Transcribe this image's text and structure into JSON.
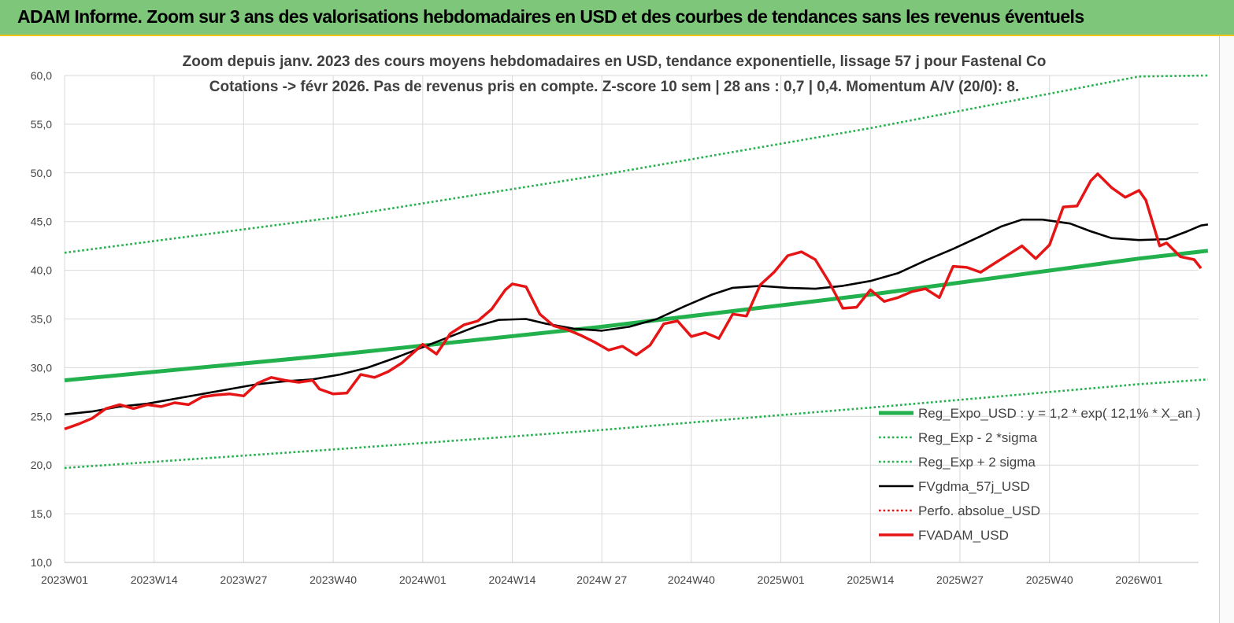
{
  "header": {
    "title": "ADAM Informe. Zoom sur 3 ans des valorisations hebdomadaires en USD et des courbes de tendances sans les revenus éventuels"
  },
  "colors": {
    "header_bg": "#7dc67a",
    "accent_rule": "#f0c419",
    "trend": "#22b14c",
    "sigma": "#22b14c",
    "ma": "#000000",
    "price": "#e61515",
    "perf": "#e61515",
    "grid": "#d9d9d9"
  },
  "chart_data": {
    "type": "line",
    "title": "Zoom depuis janv. 2023 des cours moyens hebdomadaires en USD, tendance exponentielle, lissage 57 j pour Fastenal Co",
    "subtitle": "Cotations -> févr 2026.  Pas de revenus pris en compte. Z-score 10 sem  |  28 ans : 0,7  |  0,4.  Momentum A/V (20/0): 8.",
    "xlabel": "",
    "ylabel": "",
    "x_ticks": [
      "2023W01",
      "2023W14",
      "2023W27",
      "2023W40",
      "2024W01",
      "2024W14",
      "2024W 27",
      "2024W40",
      "2025W01",
      "2025W14",
      "2025W27",
      "2025W40",
      "2026W01"
    ],
    "y_ticks": [
      "10,0",
      "15,0",
      "20,0",
      "25,0",
      "30,0",
      "35,0",
      "40,0",
      "45,0",
      "50,0",
      "55,0",
      "60,0"
    ],
    "ylim": [
      10,
      60
    ],
    "xlim": [
      1,
      167
    ],
    "grid": {
      "horizontal": true,
      "vertical": true
    },
    "legend_position": "right",
    "series": [
      {
        "name": "Reg_Expo_USD : y = 1,2  * exp( 12,1% *  X_an )",
        "style": "solid-thick",
        "color": "#22b14c",
        "points": [
          [
            1,
            28.7
          ],
          [
            40,
            31.3
          ],
          [
            79,
            34.2
          ],
          [
            118,
            37.5
          ],
          [
            157,
            41.2
          ],
          [
            167,
            42.0
          ]
        ]
      },
      {
        "name": "Reg_Exp - 2 *sigma",
        "style": "dotted",
        "color": "#22b14c",
        "points": [
          [
            1,
            19.7
          ],
          [
            40,
            21.6
          ],
          [
            79,
            23.6
          ],
          [
            118,
            25.9
          ],
          [
            157,
            28.3
          ],
          [
            167,
            28.8
          ]
        ]
      },
      {
        "name": "Reg_Exp + 2 sigma",
        "style": "dotted",
        "color": "#22b14c",
        "points": [
          [
            1,
            41.8
          ],
          [
            40,
            45.4
          ],
          [
            79,
            49.8
          ],
          [
            118,
            54.6
          ],
          [
            157,
            59.9
          ],
          [
            167,
            60.0
          ]
        ]
      },
      {
        "name": "FVgdma_57j_USD",
        "style": "solid",
        "color": "#000000",
        "points": [
          [
            1,
            25.2
          ],
          [
            5,
            25.5
          ],
          [
            9,
            26.0
          ],
          [
            13,
            26.3
          ],
          [
            17,
            26.8
          ],
          [
            21,
            27.3
          ],
          [
            25,
            27.8
          ],
          [
            29,
            28.3
          ],
          [
            33,
            28.6
          ],
          [
            37,
            28.8
          ],
          [
            41,
            29.3
          ],
          [
            45,
            30.0
          ],
          [
            49,
            31.0
          ],
          [
            53,
            32.1
          ],
          [
            57,
            33.2
          ],
          [
            61,
            34.3
          ],
          [
            64,
            34.9
          ],
          [
            68,
            35.0
          ],
          [
            71,
            34.5
          ],
          [
            75,
            34.0
          ],
          [
            79,
            33.8
          ],
          [
            83,
            34.2
          ],
          [
            87,
            35.0
          ],
          [
            91,
            36.3
          ],
          [
            95,
            37.5
          ],
          [
            98,
            38.2
          ],
          [
            102,
            38.4
          ],
          [
            106,
            38.2
          ],
          [
            110,
            38.1
          ],
          [
            114,
            38.4
          ],
          [
            118,
            38.9
          ],
          [
            122,
            39.7
          ],
          [
            126,
            41.0
          ],
          [
            130,
            42.2
          ],
          [
            134,
            43.5
          ],
          [
            137,
            44.5
          ],
          [
            140,
            45.2
          ],
          [
            143,
            45.2
          ],
          [
            147,
            44.8
          ],
          [
            150,
            44.0
          ],
          [
            153,
            43.3
          ],
          [
            157,
            43.1
          ],
          [
            161,
            43.2
          ],
          [
            164,
            44.0
          ],
          [
            166,
            44.6
          ],
          [
            167,
            44.7
          ]
        ]
      },
      {
        "name": "Perfo. absolue_USD",
        "style": "dotted",
        "color": "#e61515",
        "points": []
      },
      {
        "name": "FVADAM_USD",
        "style": "solid-thick",
        "color": "#e61515",
        "points": [
          [
            1,
            23.7
          ],
          [
            3,
            24.2
          ],
          [
            5,
            24.8
          ],
          [
            7,
            25.8
          ],
          [
            9,
            26.2
          ],
          [
            11,
            25.8
          ],
          [
            13,
            26.2
          ],
          [
            15,
            26.0
          ],
          [
            17,
            26.4
          ],
          [
            19,
            26.2
          ],
          [
            21,
            27.0
          ],
          [
            23,
            27.2
          ],
          [
            25,
            27.3
          ],
          [
            27,
            27.1
          ],
          [
            29,
            28.4
          ],
          [
            31,
            29.0
          ],
          [
            33,
            28.7
          ],
          [
            35,
            28.5
          ],
          [
            37,
            28.7
          ],
          [
            38,
            27.8
          ],
          [
            40,
            27.3
          ],
          [
            42,
            27.4
          ],
          [
            44,
            29.3
          ],
          [
            46,
            29.0
          ],
          [
            48,
            29.6
          ],
          [
            50,
            30.5
          ],
          [
            53,
            32.4
          ],
          [
            55,
            31.4
          ],
          [
            57,
            33.5
          ],
          [
            59,
            34.4
          ],
          [
            61,
            34.8
          ],
          [
            63,
            36.0
          ],
          [
            65,
            38.0
          ],
          [
            66,
            38.6
          ],
          [
            68,
            38.3
          ],
          [
            70,
            35.5
          ],
          [
            72,
            34.3
          ],
          [
            74,
            33.9
          ],
          [
            76,
            33.3
          ],
          [
            78,
            32.6
          ],
          [
            80,
            31.8
          ],
          [
            82,
            32.2
          ],
          [
            84,
            31.3
          ],
          [
            86,
            32.3
          ],
          [
            88,
            34.5
          ],
          [
            90,
            34.8
          ],
          [
            92,
            33.2
          ],
          [
            94,
            33.6
          ],
          [
            96,
            33.0
          ],
          [
            98,
            35.5
          ],
          [
            100,
            35.3
          ],
          [
            102,
            38.5
          ],
          [
            104,
            39.8
          ],
          [
            106,
            41.5
          ],
          [
            108,
            41.9
          ],
          [
            110,
            41.1
          ],
          [
            112,
            38.8
          ],
          [
            114,
            36.1
          ],
          [
            116,
            36.2
          ],
          [
            118,
            38.0
          ],
          [
            120,
            36.8
          ],
          [
            122,
            37.2
          ],
          [
            124,
            37.8
          ],
          [
            126,
            38.1
          ],
          [
            128,
            37.2
          ],
          [
            130,
            40.4
          ],
          [
            132,
            40.3
          ],
          [
            134,
            39.8
          ],
          [
            136,
            40.7
          ],
          [
            138,
            41.6
          ],
          [
            140,
            42.5
          ],
          [
            142,
            41.2
          ],
          [
            144,
            42.6
          ],
          [
            146,
            46.5
          ],
          [
            148,
            46.6
          ],
          [
            150,
            49.2
          ],
          [
            151,
            49.9
          ],
          [
            153,
            48.5
          ],
          [
            155,
            47.5
          ],
          [
            157,
            48.2
          ],
          [
            158,
            47.2
          ],
          [
            160,
            42.5
          ],
          [
            161,
            42.8
          ],
          [
            163,
            41.4
          ],
          [
            165,
            41.1
          ],
          [
            166,
            40.2
          ]
        ]
      }
    ]
  }
}
